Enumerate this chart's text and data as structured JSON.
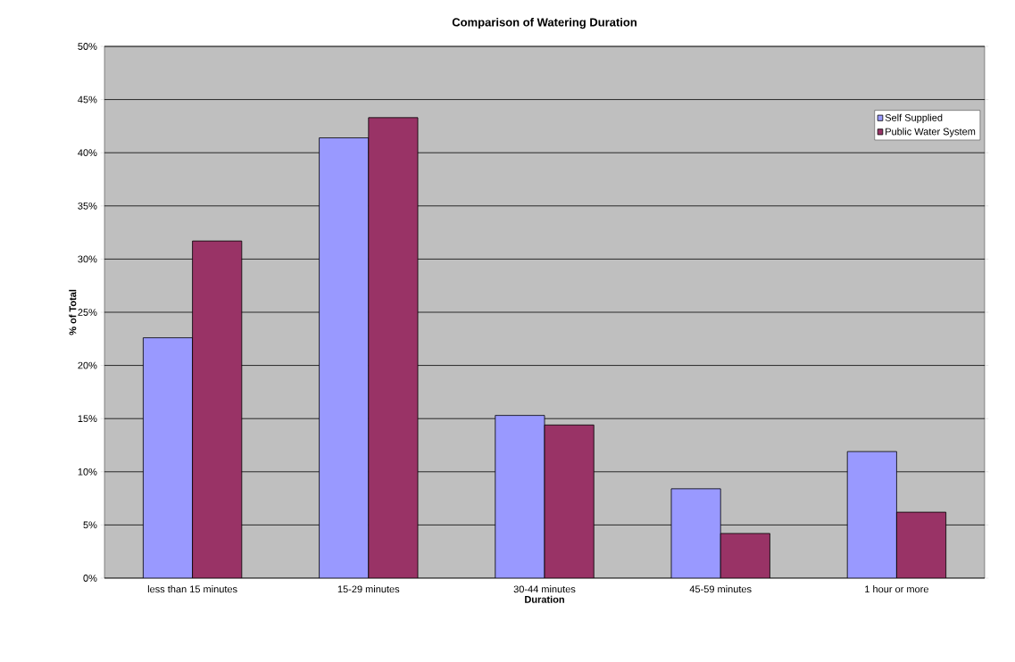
{
  "chart_data": {
    "type": "bar",
    "title": "Comparison of Watering Duration",
    "xlabel": "Duration",
    "ylabel": "% of Total",
    "categories": [
      "less than 15 minutes",
      "15-29 minutes",
      "30-44 minutes",
      "45-59 minutes",
      "1 hour or more"
    ],
    "series": [
      {
        "name": "Self Supplied",
        "color": "#9999ff",
        "values": [
          22.6,
          41.4,
          15.3,
          8.4,
          11.9
        ]
      },
      {
        "name": "Public Water System",
        "color": "#993366",
        "values": [
          31.7,
          43.3,
          14.4,
          4.2,
          6.2
        ]
      }
    ],
    "ylim": [
      0,
      50
    ],
    "yticks": [
      {
        "value": 0,
        "label": "0%"
      },
      {
        "value": 5,
        "label": "5%"
      },
      {
        "value": 10,
        "label": "10%"
      },
      {
        "value": 15,
        "label": "15%"
      },
      {
        "value": 20,
        "label": "20%"
      },
      {
        "value": 25,
        "label": "25%"
      },
      {
        "value": 30,
        "label": "30%"
      },
      {
        "value": 35,
        "label": "35%"
      },
      {
        "value": 40,
        "label": "40%"
      },
      {
        "value": 45,
        "label": "45%"
      },
      {
        "value": 50,
        "label": "50%"
      }
    ],
    "grid": "y",
    "legend": "top right"
  }
}
